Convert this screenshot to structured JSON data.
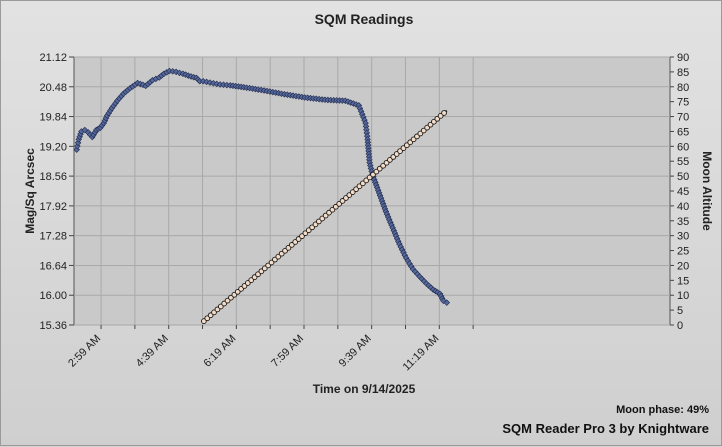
{
  "chart_data": {
    "type": "line",
    "title": "SQM Readings",
    "xlabel": "Time on 9/14/2025",
    "ylabel": "Mag/Sq Arcsec",
    "y2label": "Moon Altitude",
    "x_ticks": [
      "2:59 AM",
      "4:39 AM",
      "6:19 AM",
      "7:59 AM",
      "9:39 AM",
      "11:19 AM"
    ],
    "y_ticks": [
      "15.36",
      "16.00",
      "16.64",
      "17.28",
      "17.92",
      "18.56",
      "19.20",
      "19.84",
      "20.48",
      "21.12"
    ],
    "y2_ticks": [
      "0",
      "5",
      "10",
      "15",
      "20",
      "25",
      "30",
      "35",
      "40",
      "45",
      "50",
      "55",
      "60",
      "65",
      "70",
      "75",
      "80",
      "85",
      "90"
    ],
    "ylim": [
      15.36,
      21.12
    ],
    "y2lim": [
      0,
      90
    ],
    "xlim_minutes_since_midnight": [
      139,
      1020
    ],
    "grid": true,
    "series": [
      {
        "axis": "left",
        "color": "#3b4a7a",
        "x_minutes": [
          143,
          146,
          150,
          155,
          160,
          166,
          172,
          178,
          183,
          188,
          195,
          203,
          212,
          222,
          233,
          245,
          255,
          265,
          272,
          280,
          290,
          300,
          312,
          320,
          325,
          330,
          340,
          355,
          370,
          390,
          420,
          450,
          480,
          510,
          540,
          560,
          570,
          573,
          576,
          580,
          590,
          600,
          610,
          620,
          630,
          640,
          650,
          660,
          670,
          680,
          685,
          690
        ],
        "values": [
          19.13,
          19.35,
          19.52,
          19.55,
          19.5,
          19.4,
          19.55,
          19.6,
          19.7,
          19.86,
          20.02,
          20.18,
          20.33,
          20.45,
          20.56,
          20.5,
          20.62,
          20.68,
          20.76,
          20.82,
          20.8,
          20.76,
          20.7,
          20.67,
          20.6,
          20.6,
          20.57,
          20.53,
          20.51,
          20.47,
          20.4,
          20.32,
          20.25,
          20.2,
          20.18,
          20.08,
          19.7,
          19.35,
          18.85,
          18.6,
          18.2,
          17.8,
          17.45,
          17.1,
          16.8,
          16.56,
          16.4,
          16.25,
          16.12,
          16.03,
          15.88,
          15.84
        ]
      },
      {
        "axis": "right",
        "color": "#f3dcc8",
        "x_minutes": [
          331,
          690
        ],
        "values": [
          1.3,
          72
        ]
      }
    ]
  },
  "footer": {
    "moon_phase": "Moon phase: 49%",
    "credit": "SQM Reader Pro 3 by Knightware"
  }
}
